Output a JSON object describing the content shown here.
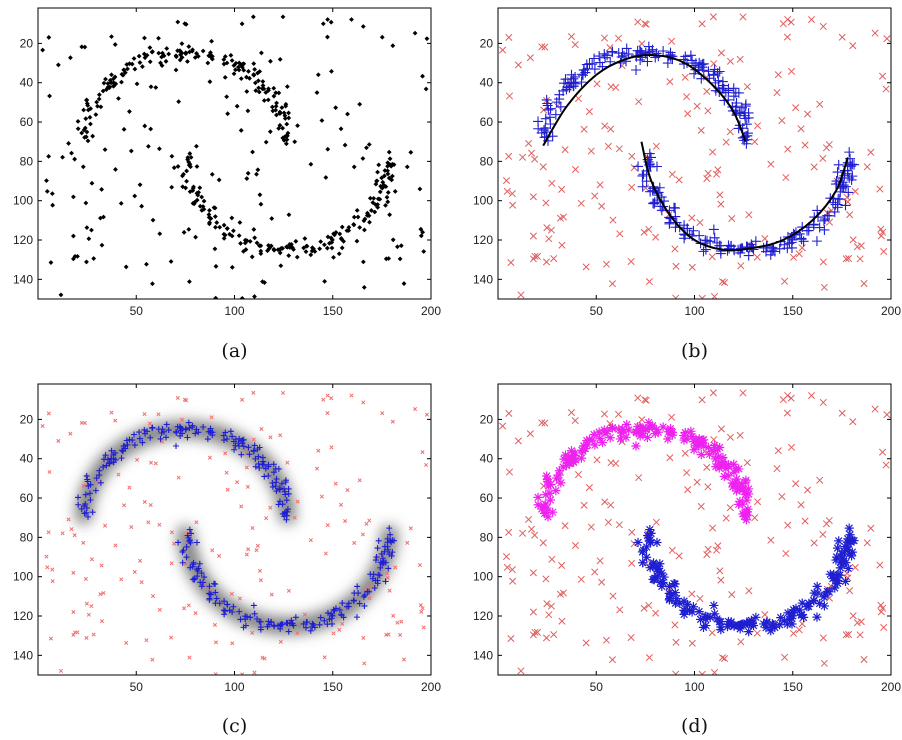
{
  "figure": {
    "panels": [
      {
        "caption": "(a)",
        "style": "black-dots"
      },
      {
        "caption": "(b)",
        "style": "cross-plus-curves"
      },
      {
        "caption": "(c)",
        "style": "small-plus-blur"
      },
      {
        "caption": "(d)",
        "style": "cross-star-two-color"
      }
    ]
  },
  "chart_data": [
    {
      "type": "scatter",
      "title": "",
      "caption": "(a)",
      "xlabel": "",
      "ylabel": "",
      "xlim": [
        0,
        200
      ],
      "ylim": [
        150,
        2
      ],
      "y_inverted": true,
      "xticks": [
        "50",
        "100",
        "150",
        "200"
      ],
      "yticks": [
        "20",
        "40",
        "60",
        "80",
        "100",
        "120",
        "140"
      ],
      "grid": false,
      "series": [
        {
          "marker": "dot",
          "color": "#000000",
          "description": "all points",
          "generator": "two-moons+noise"
        }
      ]
    },
    {
      "type": "scatter",
      "title": "",
      "caption": "(b)",
      "xlim": [
        0,
        200
      ],
      "ylim": [
        150,
        2
      ],
      "y_inverted": true,
      "xticks": [
        "50",
        "100",
        "150",
        "200"
      ],
      "yticks": [
        "20",
        "40",
        "60",
        "80",
        "100",
        "120",
        "140"
      ],
      "grid": false,
      "series": [
        {
          "marker": "x",
          "color": "#e06060",
          "role": "noise"
        },
        {
          "marker": "+",
          "color": "#1f1fd0",
          "role": "upper arc"
        },
        {
          "marker": "+",
          "color": "#1f1fd0",
          "role": "lower arc"
        },
        {
          "marker": "line",
          "color": "#000000",
          "role": "principal curve upper",
          "x": [
            23,
            35,
            50,
            65,
            80,
            95,
            110,
            120,
            126
          ],
          "y": [
            72,
            52,
            36,
            28,
            26,
            30,
            42,
            55,
            70
          ]
        },
        {
          "marker": "line",
          "color": "#000000",
          "role": "principal curve lower",
          "x": [
            73,
            78,
            88,
            100,
            115,
            130,
            145,
            160,
            172,
            178
          ],
          "y": [
            70,
            90,
            108,
            120,
            125,
            124,
            120,
            110,
            95,
            78
          ]
        }
      ]
    },
    {
      "type": "scatter",
      "title": "",
      "caption": "(c)",
      "xlim": [
        0,
        200
      ],
      "ylim": [
        150,
        2
      ],
      "y_inverted": true,
      "xticks": [
        "50",
        "100",
        "150",
        "200"
      ],
      "yticks": [
        "20",
        "40",
        "60",
        "80",
        "100",
        "120",
        "140"
      ],
      "grid": false,
      "series": [
        {
          "marker": "small-x",
          "color": "#f07070",
          "role": "noise"
        },
        {
          "marker": "+",
          "color": "#1f1fd0",
          "role": "upper arc"
        },
        {
          "marker": "+",
          "color": "#1f1fd0",
          "role": "lower arc"
        },
        {
          "marker": "band",
          "color": "#555555",
          "role": "density blur"
        }
      ]
    },
    {
      "type": "scatter",
      "title": "",
      "caption": "(d)",
      "xlim": [
        0,
        200
      ],
      "ylim": [
        150,
        2
      ],
      "y_inverted": true,
      "xticks": [
        "50",
        "100",
        "150",
        "200"
      ],
      "yticks": [
        "20",
        "40",
        "60",
        "80",
        "100",
        "120",
        "140"
      ],
      "grid": false,
      "series": [
        {
          "marker": "x",
          "color": "#e06060",
          "role": "noise"
        },
        {
          "marker": "*",
          "color": "#ee22ee",
          "role": "upper arc cluster"
        },
        {
          "marker": "*",
          "color": "#1f1fd0",
          "role": "lower arc cluster"
        }
      ]
    }
  ]
}
